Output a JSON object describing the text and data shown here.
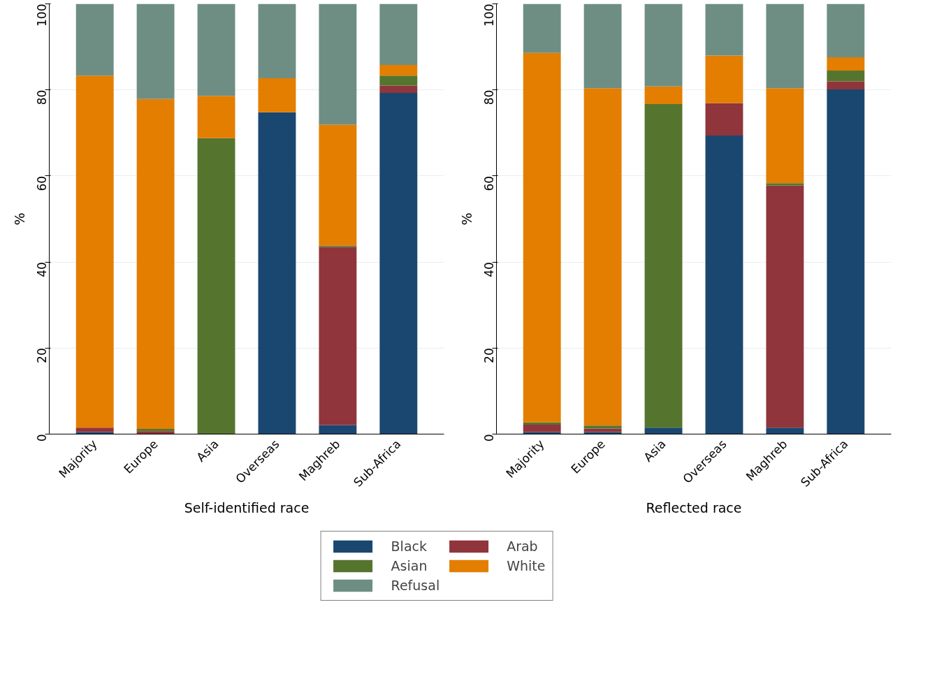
{
  "chart_data": [
    {
      "type": "bar",
      "stacked": true,
      "xlabel": "Self-identified race",
      "ylabel": "%",
      "categories": [
        "Majority",
        "Europe",
        "Asia",
        "Overseas",
        "Maghreb",
        "Sub-Africa"
      ],
      "ylim": [
        0,
        100
      ],
      "yticks": [
        0,
        20,
        40,
        60,
        80,
        100
      ],
      "grid": "y",
      "legend": "bottom",
      "series": [
        {
          "name": "Black",
          "color": "#1a476f",
          "values": [
            0.5,
            0,
            0,
            74.8,
            2.1,
            79.3
          ]
        },
        {
          "name": "Arab",
          "color": "#90353b",
          "values": [
            1.0,
            0.7,
            0,
            0,
            41.4,
            1.7
          ]
        },
        {
          "name": "Asian",
          "color": "#55752f",
          "values": [
            0,
            0.5,
            68.8,
            0,
            0.3,
            2.3
          ]
        },
        {
          "name": "White",
          "color": "#e37e00",
          "values": [
            81.8,
            76.7,
            9.8,
            7.9,
            28.1,
            2.5
          ]
        },
        {
          "name": "Refusal",
          "color": "#6e8e84",
          "values": [
            16.7,
            22.1,
            21.4,
            17.3,
            28.1,
            14.2
          ]
        }
      ]
    },
    {
      "type": "bar",
      "stacked": true,
      "xlabel": "Reflected race",
      "ylabel": "%",
      "categories": [
        "Majority",
        "Europe",
        "Asia",
        "Overseas",
        "Maghreb",
        "Sub-Africa"
      ],
      "ylim": [
        0,
        100
      ],
      "yticks": [
        0,
        20,
        40,
        60,
        80,
        100
      ],
      "grid": "y",
      "series": [
        {
          "color": "#1a476f",
          "values": [
            0.5,
            0.5,
            1.5,
            69.4,
            1.5,
            80.1
          ]
        },
        {
          "color": "#90353b",
          "values": [
            1.7,
            0.8,
            0,
            7.5,
            56.3,
            1.9
          ]
        },
        {
          "color": "#55752f",
          "values": [
            0.5,
            0.7,
            75.2,
            0,
            0.5,
            2.5
          ]
        },
        {
          "color": "#e37e00",
          "values": [
            85.9,
            78.4,
            4.1,
            11.1,
            22.1,
            3.1
          ]
        },
        {
          "color": "#6e8e84",
          "values": [
            11.4,
            19.6,
            19.2,
            12.0,
            19.6,
            12.4
          ]
        }
      ]
    }
  ]
}
